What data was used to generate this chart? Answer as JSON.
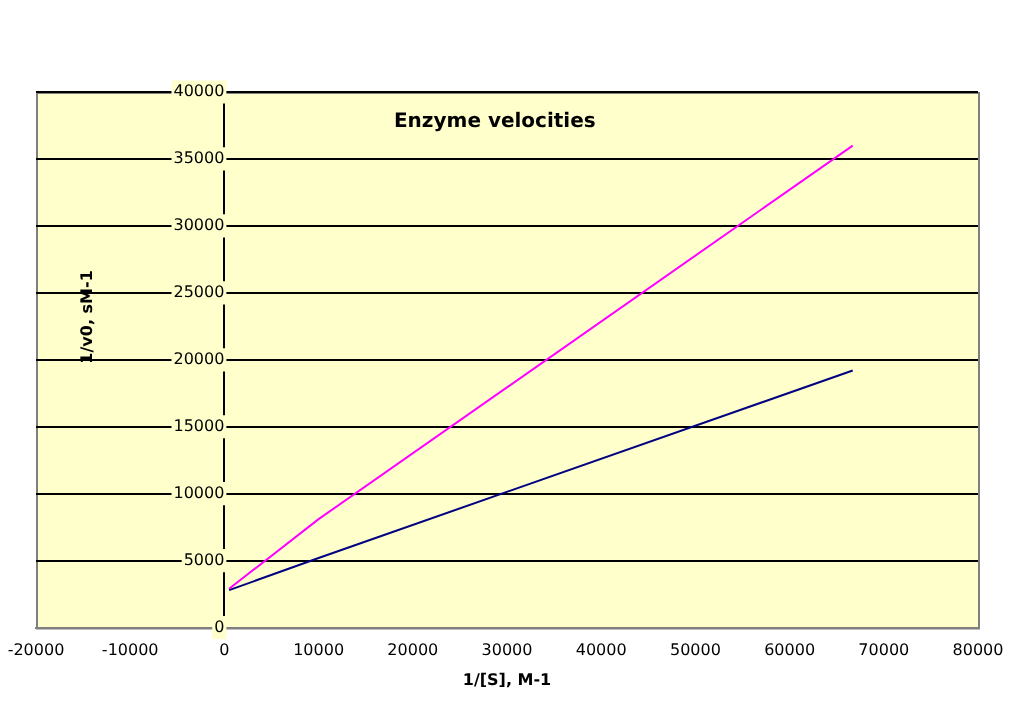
{
  "chart_data": {
    "type": "line",
    "title": "Enzyme velocities",
    "xlabel": "1/[S], M-1",
    "ylabel": "1/v0, sM-1",
    "series": [
      {
        "color": "#ff00ff",
        "x": [
          500,
          10000,
          66700
        ],
        "values": [
          2900,
          8100,
          36000
        ]
      },
      {
        "color": "#000080",
        "x": [
          500,
          10000,
          66700
        ],
        "values": [
          2800,
          5200,
          19200
        ]
      }
    ],
    "xlim": [
      -20000,
      80000
    ],
    "xticks": [
      -20000,
      -10000,
      0,
      10000,
      20000,
      30000,
      40000,
      50000,
      60000,
      70000,
      80000
    ],
    "ylim": [
      0,
      40000
    ],
    "yticks": [
      0,
      5000,
      10000,
      15000,
      20000,
      25000,
      30000,
      35000,
      40000
    ],
    "grid": "y",
    "legend": false,
    "marker": "none",
    "line_style": "solid"
  }
}
